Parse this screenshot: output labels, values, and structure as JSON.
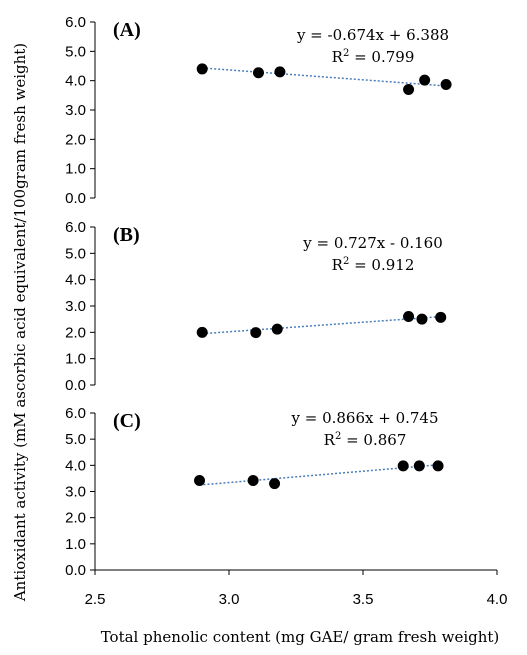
{
  "chart_data": {
    "type": "scatter",
    "xlabel": "Total phenolic content (mg GAE/ gram fresh weight)",
    "ylabel": "Antioxidant activity (mM ascorbic acid equivalent/100gram  fresh weight)",
    "xlim": [
      2.5,
      4.0
    ],
    "x_ticks": [
      "2.5",
      "3.0",
      "3.5",
      "4.0"
    ],
    "ylim": [
      0,
      6
    ],
    "y_ticks": [
      "0.0",
      "1.0",
      "2.0",
      "3.0",
      "4.0",
      "5.0",
      "6.0"
    ],
    "grid": false,
    "marker_color": "#000000",
    "trendline_color": "#4a7ebb",
    "panels": [
      {
        "label": "(A)",
        "equation": "y = -0.674x + 6.388",
        "r2_prefix": "R",
        "r2_sup": "2",
        "r2_value": " = 0.799",
        "trend": {
          "slope": -0.674,
          "intercept": 6.388
        },
        "points": [
          {
            "x": 2.9,
            "y": 4.4
          },
          {
            "x": 3.11,
            "y": 4.27
          },
          {
            "x": 3.19,
            "y": 4.3
          },
          {
            "x": 3.67,
            "y": 3.7
          },
          {
            "x": 3.73,
            "y": 4.02
          },
          {
            "x": 3.81,
            "y": 3.87
          }
        ]
      },
      {
        "label": "(B)",
        "equation": "y = 0.727x - 0.160",
        "r2_prefix": "R",
        "r2_sup": "2",
        "r2_value": " = 0.912",
        "trend": {
          "slope": 0.727,
          "intercept": -0.16
        },
        "points": [
          {
            "x": 2.9,
            "y": 2.0
          },
          {
            "x": 3.1,
            "y": 1.99
          },
          {
            "x": 3.18,
            "y": 2.12
          },
          {
            "x": 3.67,
            "y": 2.6
          },
          {
            "x": 3.72,
            "y": 2.5
          },
          {
            "x": 3.79,
            "y": 2.57
          }
        ]
      },
      {
        "label": "(C)",
        "equation": "y = 0.866x + 0.745",
        "r2_prefix": "R",
        "r2_sup": "2",
        "r2_value": " = 0.867",
        "trend": {
          "slope": 0.866,
          "intercept": 0.745
        },
        "points": [
          {
            "x": 2.89,
            "y": 3.42
          },
          {
            "x": 3.09,
            "y": 3.42
          },
          {
            "x": 3.17,
            "y": 3.3
          },
          {
            "x": 3.65,
            "y": 3.98
          },
          {
            "x": 3.71,
            "y": 3.98
          },
          {
            "x": 3.78,
            "y": 3.98
          }
        ]
      }
    ]
  }
}
